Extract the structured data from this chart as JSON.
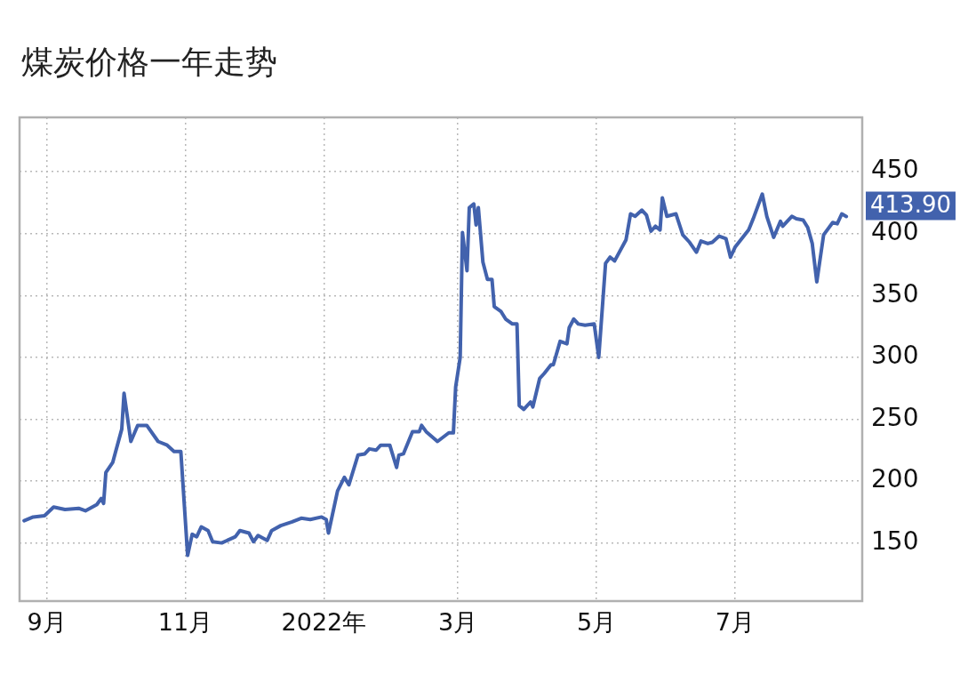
{
  "chart_data": {
    "type": "line",
    "title": "煤炭价格一年走势",
    "x": [
      "2021-08-22",
      "2021-08-26",
      "2021-08-31",
      "2021-09-04",
      "2021-09-09",
      "2021-09-15",
      "2021-09-18",
      "2021-09-23",
      "2021-09-25",
      "2021-09-26",
      "2021-09-27",
      "2021-09-30",
      "2021-10-04",
      "2021-10-05",
      "2021-10-08",
      "2021-10-11",
      "2021-10-15",
      "2021-10-20",
      "2021-10-24",
      "2021-10-27",
      "2021-10-30",
      "2021-11-02",
      "2021-11-04",
      "2021-11-06",
      "2021-11-08",
      "2021-11-11",
      "2021-11-13",
      "2021-11-17",
      "2021-11-23",
      "2021-11-25",
      "2021-11-29",
      "2021-12-01",
      "2021-12-03",
      "2021-12-07",
      "2021-12-09",
      "2021-12-13",
      "2021-12-18",
      "2021-12-22",
      "2021-12-26",
      "2021-12-31",
      "2022-01-02",
      "2022-01-03",
      "2022-01-07",
      "2022-01-10",
      "2022-01-12",
      "2022-01-16",
      "2022-01-19",
      "2022-01-21",
      "2022-01-24",
      "2022-01-26",
      "2022-01-30",
      "2022-02-02",
      "2022-02-03",
      "2022-02-05",
      "2022-02-09",
      "2022-02-12",
      "2022-02-13",
      "2022-02-15",
      "2022-02-20",
      "2022-02-25",
      "2022-02-27",
      "2022-02-28",
      "2022-03-02",
      "2022-03-03",
      "2022-03-05",
      "2022-03-06",
      "2022-03-08",
      "2022-03-09",
      "2022-03-10",
      "2022-03-12",
      "2022-03-14",
      "2022-03-16",
      "2022-03-17",
      "2022-03-20",
      "2022-03-22",
      "2022-03-25",
      "2022-03-27",
      "2022-03-28",
      "2022-03-30",
      "2022-04-02",
      "2022-04-03",
      "2022-04-06",
      "2022-04-08",
      "2022-04-11",
      "2022-04-12",
      "2022-04-15",
      "2022-04-18",
      "2022-04-19",
      "2022-04-21",
      "2022-04-23",
      "2022-04-26",
      "2022-04-30",
      "2022-05-02",
      "2022-05-05",
      "2022-05-07",
      "2022-05-09",
      "2022-05-14",
      "2022-05-16",
      "2022-05-18",
      "2022-05-21",
      "2022-05-23",
      "2022-05-25",
      "2022-05-27",
      "2022-05-29",
      "2022-05-30",
      "2022-06-01",
      "2022-06-05",
      "2022-06-08",
      "2022-06-11",
      "2022-06-14",
      "2022-06-16",
      "2022-06-19",
      "2022-06-21",
      "2022-06-24",
      "2022-06-27",
      "2022-06-29",
      "2022-07-01",
      "2022-07-04",
      "2022-07-07",
      "2022-07-09",
      "2022-07-13",
      "2022-07-15",
      "2022-07-18",
      "2022-07-21",
      "2022-07-22",
      "2022-07-26",
      "2022-07-28",
      "2022-07-31",
      "2022-08-02",
      "2022-08-04",
      "2022-08-06",
      "2022-08-09",
      "2022-08-13",
      "2022-08-15",
      "2022-08-17",
      "2022-08-19"
    ],
    "series": [
      {
        "color": "#4262ad",
        "values": [
          168,
          171,
          172,
          179,
          177,
          178,
          176,
          181,
          186,
          182,
          207,
          215,
          242,
          271,
          232,
          245,
          245,
          232,
          229,
          224,
          224,
          140,
          157,
          155,
          163,
          160,
          151,
          150,
          155,
          160,
          158,
          151,
          156,
          152,
          160,
          164,
          167,
          170,
          169,
          171,
          169,
          158,
          192,
          203,
          197,
          221,
          222,
          226,
          225,
          229,
          229,
          211,
          221,
          222,
          240,
          240,
          245,
          240,
          232,
          239,
          239,
          276,
          300,
          401,
          370,
          421,
          424,
          407,
          421,
          377,
          363,
          363,
          341,
          337,
          331,
          327,
          327,
          261,
          258,
          264,
          260,
          283,
          287,
          294,
          294,
          313,
          311,
          324,
          331,
          327,
          326,
          327,
          300,
          376,
          381,
          378,
          395,
          416,
          414,
          419,
          415,
          402,
          406,
          403,
          429,
          414,
          416,
          399,
          393,
          385,
          394,
          392,
          393,
          398,
          396,
          381,
          389,
          396,
          403,
          412,
          432,
          414,
          397,
          410,
          406,
          414,
          412,
          411,
          405,
          392,
          361,
          399,
          409,
          408,
          416,
          413.9
        ]
      }
    ],
    "xlim": [
      "2021-08-20",
      "2022-08-26"
    ],
    "xticks": [
      {
        "value": "2021-09-01",
        "label": "9月"
      },
      {
        "value": "2021-11-01",
        "label": "11月"
      },
      {
        "value": "2022-01-01",
        "label": "2022年"
      },
      {
        "value": "2022-03-01",
        "label": "3月"
      },
      {
        "value": "2022-05-01",
        "label": "5月"
      },
      {
        "value": "2022-07-01",
        "label": "7月"
      }
    ],
    "ylim": [
      103,
      494
    ],
    "yticks": [
      150,
      200,
      250,
      300,
      350,
      400,
      450
    ],
    "annotations": [
      {
        "text": "413.90",
        "x": "2022-08-19",
        "y": 413.9
      }
    ],
    "grid": true,
    "legend": false,
    "marker": "none",
    "line_style": "solid"
  }
}
